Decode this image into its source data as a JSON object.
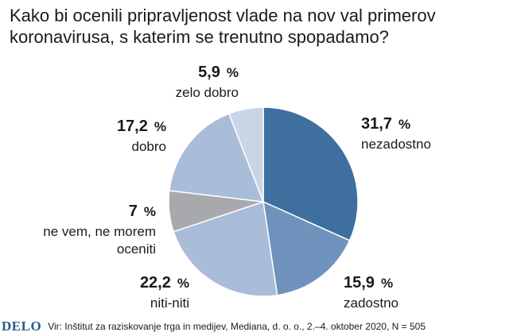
{
  "chart_data": {
    "type": "pie",
    "title": "Kako bi ocenili pripravljenost vlade na nov val primerov koronavirusa, s katerim se trenutno spopadamo?",
    "title_lines": [
      "Kako bi ocenili pripravljenost vlade na nov val primerov",
      "koronavirusa, s katerim se trenutno spopadamo?"
    ],
    "slices": [
      {
        "label": "nezadostno",
        "label_lines": [
          "nezadostno"
        ],
        "value": 31.7,
        "value_text": "31,7",
        "unit": "%",
        "color": "#3e6f9f"
      },
      {
        "label": "zadostno",
        "label_lines": [
          "zadostno"
        ],
        "value": 15.9,
        "value_text": "15,9",
        "unit": "%",
        "color": "#6f93bc"
      },
      {
        "label": "niti-niti",
        "label_lines": [
          "niti-niti"
        ],
        "value": 22.2,
        "value_text": "22,2",
        "unit": "%",
        "color": "#a9bcd8"
      },
      {
        "label": "ne vem, ne morem oceniti",
        "label_lines": [
          "ne vem, ne morem",
          "oceniti"
        ],
        "value": 7,
        "value_text": "7",
        "unit": "%",
        "color": "#a8a9ac"
      },
      {
        "label": "dobro",
        "label_lines": [
          "dobro"
        ],
        "value": 17.2,
        "value_text": "17,2",
        "unit": "%",
        "color": "#a9bcd8"
      },
      {
        "label": "zelo dobro",
        "label_lines": [
          "zelo dobro"
        ],
        "value": 5.9,
        "value_text": "5,9",
        "unit": "%",
        "color": "#c9d5e6"
      }
    ]
  },
  "footer": {
    "brand": "DELO",
    "source": "Vir: Inštitut za raziskovanje trga in medijev, Mediana, d. o. o., 2.–4. oktober 2020, N = 505"
  },
  "colors": {
    "brand": "#2a5a8c",
    "slice_border": "#ffffff"
  }
}
